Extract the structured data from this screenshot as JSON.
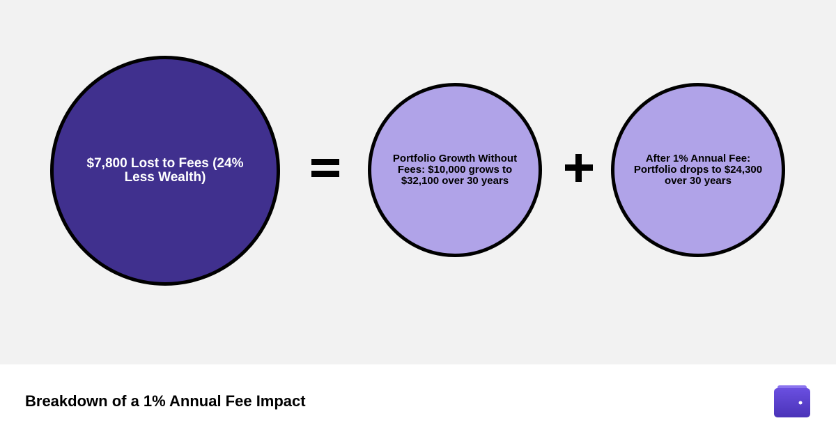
{
  "nodes": [
    {
      "label": "$7,800 Lost to Fees (24% Less Wealth)"
    },
    {
      "label": "Portfolio Growth Without Fees: $10,000 grows to $32,100 over 30 years"
    },
    {
      "label": "After 1% Annual Fee: Portfolio drops to $24,300 over 30 years"
    }
  ],
  "footer": {
    "title": "Breakdown of a 1% Annual Fee Impact"
  }
}
